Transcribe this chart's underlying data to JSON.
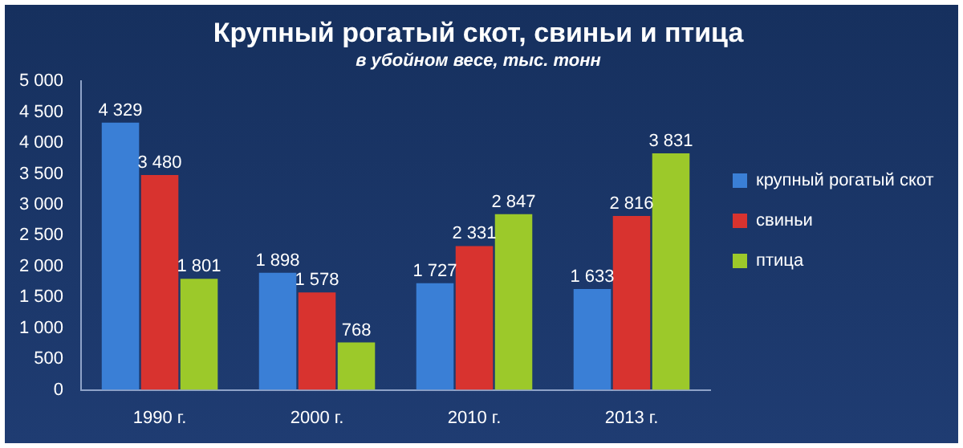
{
  "chart_data": {
    "type": "bar",
    "title": "Крупный рогатый скот, свиньи и птица",
    "subtitle": "в убойном весе, тыс. тонн",
    "categories": [
      "1990 г.",
      "2000 г.",
      "2010 г.",
      "2013 г."
    ],
    "series": [
      {
        "name": "крупный рогатый скот",
        "color": "#3a7fd6",
        "values": [
          4329,
          1898,
          1727,
          1633
        ],
        "value_labels": [
          "4 329",
          "1 898",
          "1 727",
          "1 633"
        ]
      },
      {
        "name": "свиньи",
        "color": "#d8332f",
        "values": [
          3480,
          1578,
          2331,
          2816
        ],
        "value_labels": [
          "3 480",
          "1 578",
          "2 331",
          "2 816"
        ]
      },
      {
        "name": "птица",
        "color": "#9cc92a",
        "values": [
          1801,
          768,
          2847,
          3831
        ],
        "value_labels": [
          "1 801",
          "768",
          "2 847",
          "3 831"
        ]
      }
    ],
    "ylim": [
      0,
      5000
    ],
    "yticks": [
      0,
      {
        "value": 500,
        "label": "500"
      },
      {
        "value": 1000,
        "label": "1 000"
      },
      {
        "value": 1500,
        "label": "1 500"
      },
      {
        "value": 2000,
        "label": "2 000"
      },
      {
        "value": 2500,
        "label": "2 500"
      },
      {
        "value": 3000,
        "label": "3 000"
      },
      {
        "value": 3500,
        "label": "3 500"
      },
      {
        "value": 4000,
        "label": "4 000"
      },
      {
        "value": 4500,
        "label": "4 500"
      },
      {
        "value": 5000,
        "label": "5 000"
      }
    ],
    "grid": false,
    "legend": "right"
  }
}
